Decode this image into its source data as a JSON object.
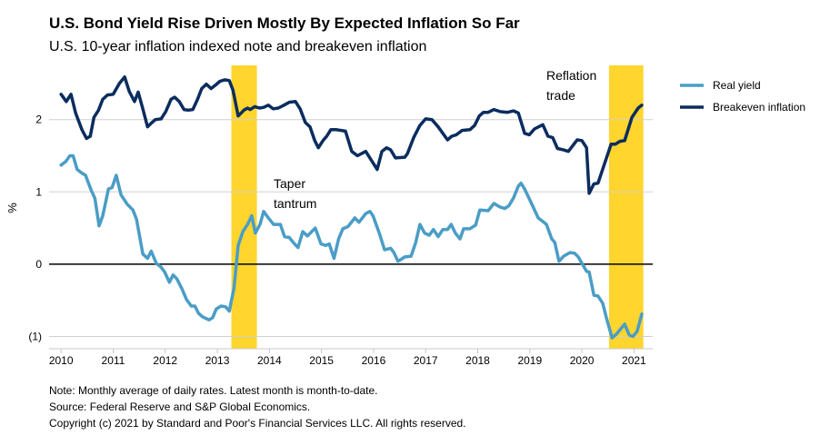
{
  "chart_data": {
    "type": "line",
    "title": "U.S. Bond Yield Rise Driven Mostly By Expected Inflation So Far",
    "subtitle": "U.S. 10-year inflation indexed note and breakeven inflation",
    "xlabel": "",
    "ylabel": "%",
    "xlim": [
      2009.77,
      2021.36
    ],
    "ylim": [
      -1.17,
      2.75
    ],
    "x_ticks": [
      2010,
      2011,
      2012,
      2013,
      2014,
      2015,
      2016,
      2017,
      2018,
      2019,
      2020,
      2021
    ],
    "x_tick_labels": [
      "2010",
      "2011",
      "2012",
      "2013",
      "2014",
      "2015",
      "2016",
      "2017",
      "2018",
      "2019",
      "2020",
      "2021"
    ],
    "y_ticks": [
      2,
      1,
      0,
      -1
    ],
    "y_tick_labels": [
      "2",
      "1",
      "0",
      "(1)"
    ],
    "grid": "horizontal",
    "zero_line": true,
    "legend_position": "right",
    "highlights": [
      {
        "label": "Taper\ntantrum",
        "start": 2013.27,
        "end": 2013.76,
        "label_lines": [
          "Taper",
          "tantrum"
        ]
      },
      {
        "label": "Reflation\ntrade",
        "start": 2020.52,
        "end": 2021.18,
        "label_lines": [
          "Reflation",
          "trade"
        ]
      }
    ],
    "highlight_color": "#FFD52E",
    "series": [
      {
        "name": "Real yield",
        "color": "#4A9DC6",
        "points": [
          [
            2010.0,
            1.37
          ],
          [
            2010.09,
            1.42
          ],
          [
            2010.17,
            1.5
          ],
          [
            2010.23,
            1.5
          ],
          [
            2010.31,
            1.31
          ],
          [
            2010.4,
            1.26
          ],
          [
            2010.47,
            1.23
          ],
          [
            2010.58,
            1.02
          ],
          [
            2010.65,
            0.91
          ],
          [
            2010.73,
            0.53
          ],
          [
            2010.8,
            0.67
          ],
          [
            2010.91,
            1.04
          ],
          [
            2010.98,
            1.06
          ],
          [
            2011.06,
            1.23
          ],
          [
            2011.15,
            0.96
          ],
          [
            2011.27,
            0.83
          ],
          [
            2011.38,
            0.75
          ],
          [
            2011.45,
            0.62
          ],
          [
            2011.57,
            0.14
          ],
          [
            2011.66,
            0.08
          ],
          [
            2011.73,
            0.18
          ],
          [
            2011.83,
            0.01
          ],
          [
            2011.92,
            -0.04
          ],
          [
            2011.99,
            -0.11
          ],
          [
            2012.08,
            -0.25
          ],
          [
            2012.15,
            -0.15
          ],
          [
            2012.22,
            -0.2
          ],
          [
            2012.32,
            -0.34
          ],
          [
            2012.41,
            -0.49
          ],
          [
            2012.5,
            -0.58
          ],
          [
            2012.57,
            -0.58
          ],
          [
            2012.64,
            -0.68
          ],
          [
            2012.72,
            -0.73
          ],
          [
            2012.84,
            -0.77
          ],
          [
            2012.91,
            -0.74
          ],
          [
            2012.98,
            -0.62
          ],
          [
            2013.07,
            -0.58
          ],
          [
            2013.16,
            -0.59
          ],
          [
            2013.23,
            -0.65
          ],
          [
            2013.32,
            -0.33
          ],
          [
            2013.4,
            0.26
          ],
          [
            2013.49,
            0.45
          ],
          [
            2013.58,
            0.55
          ],
          [
            2013.66,
            0.67
          ],
          [
            2013.73,
            0.43
          ],
          [
            2013.82,
            0.55
          ],
          [
            2013.89,
            0.73
          ],
          [
            2013.98,
            0.64
          ],
          [
            2014.08,
            0.55
          ],
          [
            2014.21,
            0.55
          ],
          [
            2014.29,
            0.38
          ],
          [
            2014.38,
            0.37
          ],
          [
            2014.47,
            0.29
          ],
          [
            2014.55,
            0.23
          ],
          [
            2014.64,
            0.45
          ],
          [
            2014.73,
            0.39
          ],
          [
            2014.88,
            0.5
          ],
          [
            2014.99,
            0.28
          ],
          [
            2015.08,
            0.26
          ],
          [
            2015.15,
            0.28
          ],
          [
            2015.24,
            0.08
          ],
          [
            2015.33,
            0.35
          ],
          [
            2015.41,
            0.49
          ],
          [
            2015.51,
            0.52
          ],
          [
            2015.64,
            0.64
          ],
          [
            2015.72,
            0.58
          ],
          [
            2015.85,
            0.7
          ],
          [
            2015.93,
            0.73
          ],
          [
            2015.99,
            0.67
          ],
          [
            2016.11,
            0.43
          ],
          [
            2016.21,
            0.2
          ],
          [
            2016.33,
            0.22
          ],
          [
            2016.39,
            0.16
          ],
          [
            2016.47,
            0.04
          ],
          [
            2016.6,
            0.1
          ],
          [
            2016.72,
            0.11
          ],
          [
            2016.81,
            0.3
          ],
          [
            2016.89,
            0.55
          ],
          [
            2016.98,
            0.43
          ],
          [
            2017.07,
            0.4
          ],
          [
            2017.15,
            0.48
          ],
          [
            2017.24,
            0.38
          ],
          [
            2017.33,
            0.48
          ],
          [
            2017.42,
            0.48
          ],
          [
            2017.49,
            0.55
          ],
          [
            2017.57,
            0.43
          ],
          [
            2017.66,
            0.35
          ],
          [
            2017.73,
            0.49
          ],
          [
            2017.85,
            0.49
          ],
          [
            2017.96,
            0.54
          ],
          [
            2018.04,
            0.75
          ],
          [
            2018.2,
            0.74
          ],
          [
            2018.31,
            0.84
          ],
          [
            2018.43,
            0.79
          ],
          [
            2018.52,
            0.77
          ],
          [
            2018.6,
            0.81
          ],
          [
            2018.69,
            0.92
          ],
          [
            2018.78,
            1.08
          ],
          [
            2018.83,
            1.12
          ],
          [
            2018.9,
            1.04
          ],
          [
            2019.02,
            0.86
          ],
          [
            2019.16,
            0.64
          ],
          [
            2019.25,
            0.59
          ],
          [
            2019.32,
            0.55
          ],
          [
            2019.42,
            0.35
          ],
          [
            2019.48,
            0.3
          ],
          [
            2019.56,
            0.04
          ],
          [
            2019.65,
            0.11
          ],
          [
            2019.77,
            0.16
          ],
          [
            2019.86,
            0.15
          ],
          [
            2019.93,
            0.1
          ],
          [
            2020.09,
            -0.1
          ],
          [
            2020.14,
            -0.11
          ],
          [
            2020.23,
            -0.43
          ],
          [
            2020.31,
            -0.44
          ],
          [
            2020.4,
            -0.54
          ],
          [
            2020.47,
            -0.74
          ],
          [
            2020.58,
            -1.02
          ],
          [
            2020.66,
            -0.97
          ],
          [
            2020.82,
            -0.83
          ],
          [
            2020.91,
            -0.98
          ],
          [
            2020.98,
            -1.0
          ],
          [
            2021.06,
            -0.93
          ],
          [
            2021.15,
            -0.69
          ]
        ]
      },
      {
        "name": "Breakeven inflation",
        "color": "#0B2C5E",
        "points": [
          [
            2010.0,
            2.35
          ],
          [
            2010.1,
            2.25
          ],
          [
            2010.19,
            2.35
          ],
          [
            2010.28,
            2.09
          ],
          [
            2010.4,
            1.86
          ],
          [
            2010.49,
            1.74
          ],
          [
            2010.56,
            1.77
          ],
          [
            2010.63,
            2.03
          ],
          [
            2010.72,
            2.13
          ],
          [
            2010.8,
            2.28
          ],
          [
            2010.89,
            2.34
          ],
          [
            2011.0,
            2.35
          ],
          [
            2011.12,
            2.5
          ],
          [
            2011.22,
            2.59
          ],
          [
            2011.31,
            2.39
          ],
          [
            2011.41,
            2.25
          ],
          [
            2011.48,
            2.38
          ],
          [
            2011.57,
            2.15
          ],
          [
            2011.66,
            1.9
          ],
          [
            2011.73,
            1.95
          ],
          [
            2011.81,
            2.0
          ],
          [
            2011.92,
            2.01
          ],
          [
            2012.01,
            2.11
          ],
          [
            2012.11,
            2.28
          ],
          [
            2012.18,
            2.31
          ],
          [
            2012.27,
            2.25
          ],
          [
            2012.36,
            2.14
          ],
          [
            2012.44,
            2.13
          ],
          [
            2012.53,
            2.14
          ],
          [
            2012.62,
            2.28
          ],
          [
            2012.7,
            2.43
          ],
          [
            2012.79,
            2.49
          ],
          [
            2012.88,
            2.43
          ],
          [
            2012.97,
            2.48
          ],
          [
            2013.05,
            2.53
          ],
          [
            2013.14,
            2.55
          ],
          [
            2013.23,
            2.54
          ],
          [
            2013.3,
            2.41
          ],
          [
            2013.33,
            2.3
          ],
          [
            2013.4,
            2.05
          ],
          [
            2013.51,
            2.13
          ],
          [
            2013.58,
            2.16
          ],
          [
            2013.63,
            2.14
          ],
          [
            2013.72,
            2.18
          ],
          [
            2013.81,
            2.16
          ],
          [
            2013.89,
            2.17
          ],
          [
            2013.98,
            2.2
          ],
          [
            2014.07,
            2.15
          ],
          [
            2014.17,
            2.16
          ],
          [
            2014.28,
            2.2
          ],
          [
            2014.38,
            2.24
          ],
          [
            2014.5,
            2.25
          ],
          [
            2014.59,
            2.15
          ],
          [
            2014.69,
            1.96
          ],
          [
            2014.78,
            1.9
          ],
          [
            2014.87,
            1.71
          ],
          [
            2014.94,
            1.61
          ],
          [
            2015.03,
            1.71
          ],
          [
            2015.1,
            1.77
          ],
          [
            2015.18,
            1.86
          ],
          [
            2015.29,
            1.86
          ],
          [
            2015.46,
            1.84
          ],
          [
            2015.58,
            1.56
          ],
          [
            2015.69,
            1.5
          ],
          [
            2015.85,
            1.56
          ],
          [
            2016.07,
            1.31
          ],
          [
            2016.16,
            1.56
          ],
          [
            2016.25,
            1.61
          ],
          [
            2016.33,
            1.58
          ],
          [
            2016.42,
            1.47
          ],
          [
            2016.6,
            1.48
          ],
          [
            2016.65,
            1.53
          ],
          [
            2016.77,
            1.75
          ],
          [
            2016.89,
            1.92
          ],
          [
            2017.0,
            2.01
          ],
          [
            2017.12,
            2.0
          ],
          [
            2017.24,
            1.9
          ],
          [
            2017.42,
            1.72
          ],
          [
            2017.5,
            1.77
          ],
          [
            2017.59,
            1.79
          ],
          [
            2017.7,
            1.85
          ],
          [
            2017.85,
            1.86
          ],
          [
            2017.94,
            1.92
          ],
          [
            2018.03,
            2.05
          ],
          [
            2018.11,
            2.1
          ],
          [
            2018.2,
            2.1
          ],
          [
            2018.31,
            2.14
          ],
          [
            2018.43,
            2.11
          ],
          [
            2018.57,
            2.1
          ],
          [
            2018.69,
            2.12
          ],
          [
            2018.78,
            2.09
          ],
          [
            2018.9,
            1.81
          ],
          [
            2018.99,
            1.79
          ],
          [
            2019.09,
            1.87
          ],
          [
            2019.25,
            1.93
          ],
          [
            2019.35,
            1.77
          ],
          [
            2019.44,
            1.75
          ],
          [
            2019.53,
            1.6
          ],
          [
            2019.65,
            1.58
          ],
          [
            2019.74,
            1.56
          ],
          [
            2019.91,
            1.72
          ],
          [
            2020.0,
            1.71
          ],
          [
            2020.09,
            1.61
          ],
          [
            2020.14,
            0.98
          ],
          [
            2020.23,
            1.11
          ],
          [
            2020.31,
            1.12
          ],
          [
            2020.56,
            1.66
          ],
          [
            2020.64,
            1.66
          ],
          [
            2020.73,
            1.7
          ],
          [
            2020.82,
            1.71
          ],
          [
            2020.96,
            2.03
          ],
          [
            2021.08,
            2.16
          ],
          [
            2021.15,
            2.2
          ]
        ]
      }
    ]
  },
  "footnotes": [
    "Note: Monthly average of daily rates. Latest month is month-to-date.",
    "Source: Federal Reserve and S&P Global Economics.",
    "Copyright (c) 2021 by Standard and Poor's Financial Services LLC. All rights reserved."
  ]
}
